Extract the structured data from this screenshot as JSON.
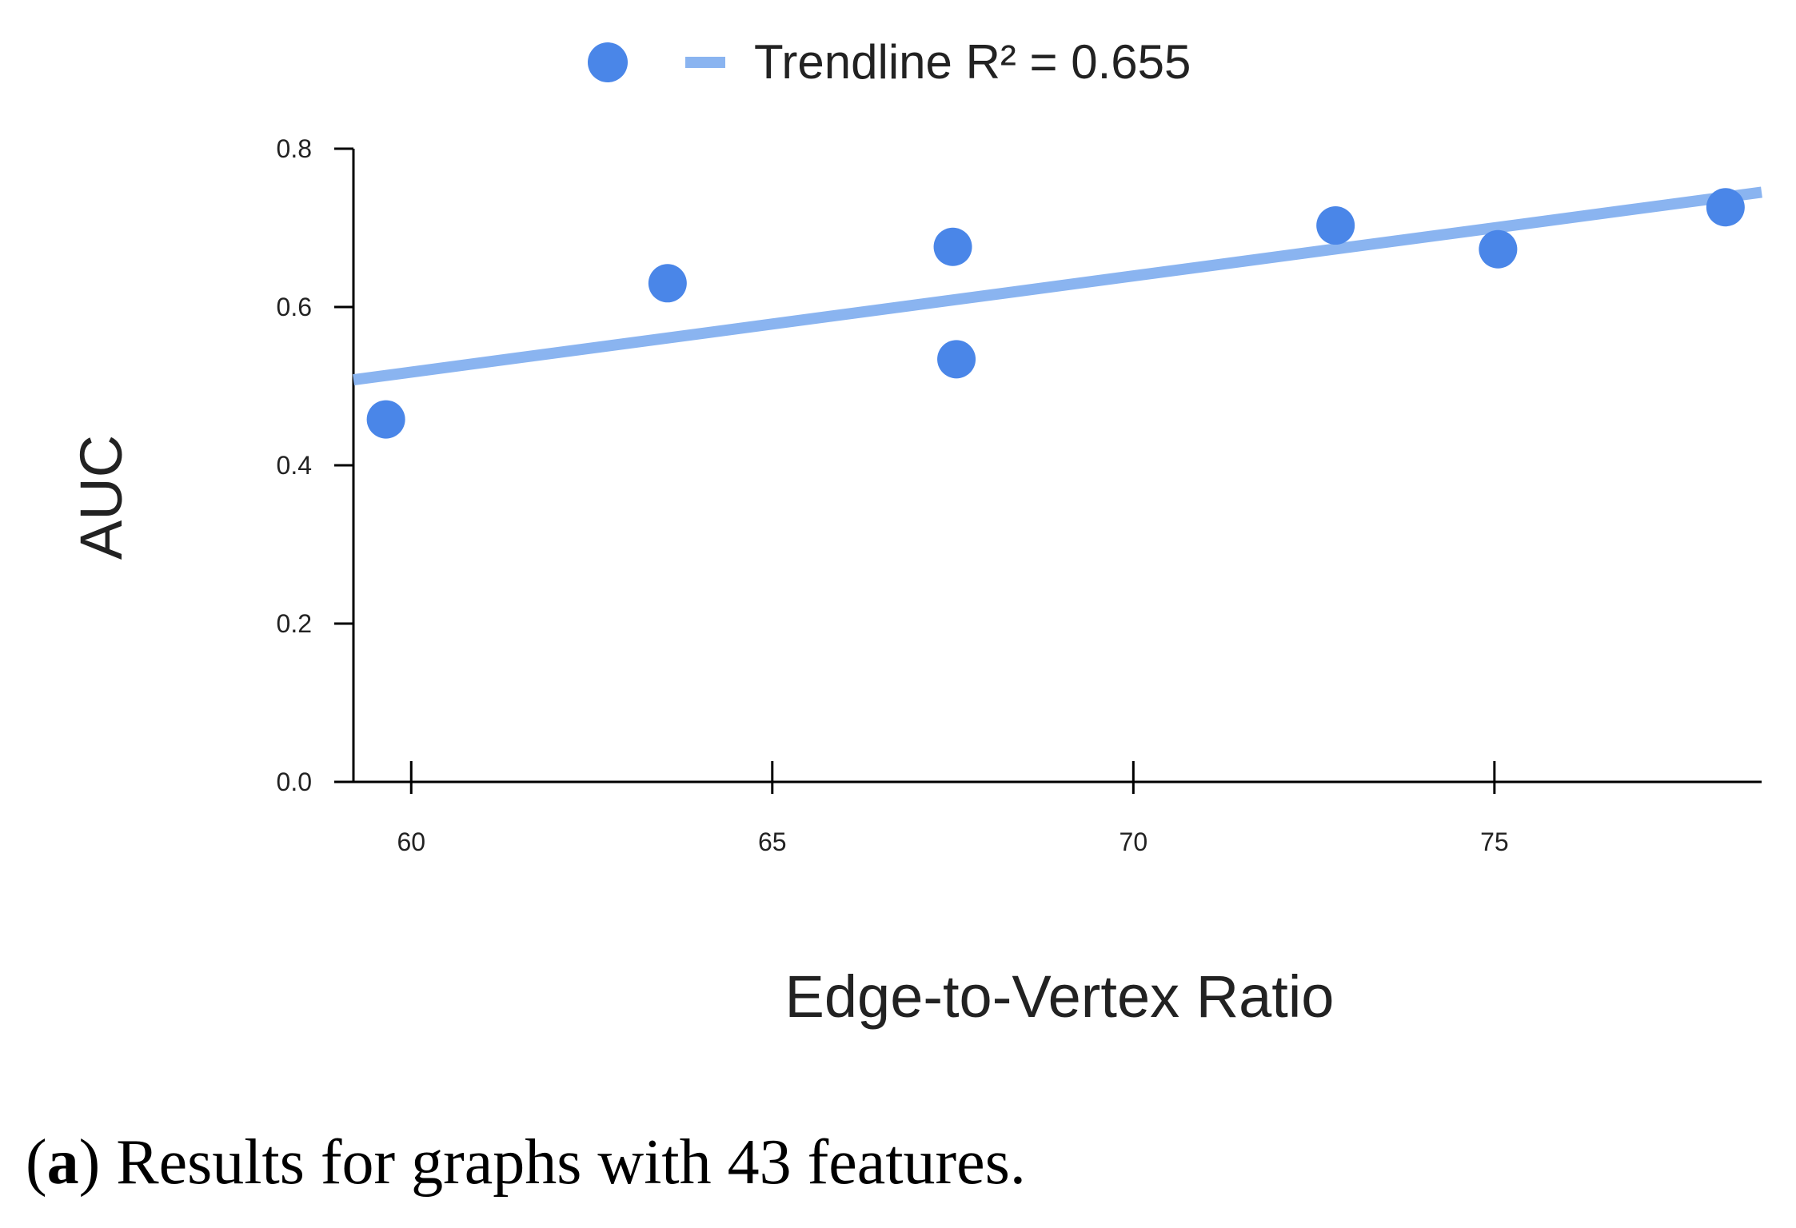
{
  "chart_data": {
    "type": "scatter",
    "xlabel": "Edge-to-Vertex Ratio",
    "ylabel": "AUC",
    "xlim": [
      59.2,
      78.7
    ],
    "ylim": [
      0,
      0.8
    ],
    "xticks": [
      60,
      65,
      70,
      75
    ],
    "yticks": [
      {
        "value": 0,
        "label": "0.0"
      },
      0.2,
      0.4,
      0.6,
      0.8
    ],
    "series": [
      {
        "color": "#4a86e8",
        "x": [
          59.65,
          63.55,
          67.5,
          67.55,
          72.8,
          75.05,
          78.2
        ],
        "values": [
          0.458,
          0.63,
          0.676,
          0.534,
          0.703,
          0.673,
          0.726
        ]
      },
      {
        "name": "Trendline R² = 0.655",
        "type": "line",
        "color": "#8ab4f0",
        "x": [
          59.2,
          78.7
        ],
        "values": [
          0.508,
          0.745
        ]
      }
    ],
    "caption": {
      "open": "(",
      "label": "a",
      "close": ")",
      "text": "Results for graphs with 43 features."
    }
  }
}
